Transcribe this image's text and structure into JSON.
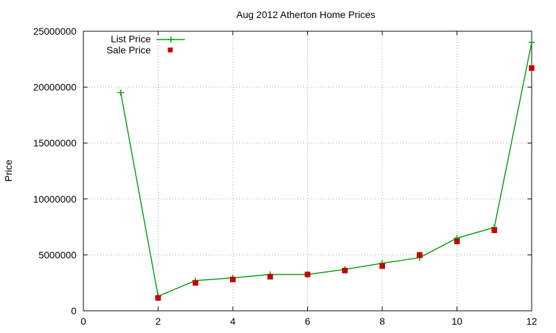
{
  "chart_data": {
    "type": "line",
    "title": "Aug 2012 Atherton Home Prices",
    "xlabel": "",
    "ylabel": "Price",
    "xlim": [
      0,
      12
    ],
    "ylim": [
      0,
      25000000
    ],
    "x_ticks": [
      "0",
      "2",
      "4",
      "6",
      "8",
      "10",
      "12"
    ],
    "y_ticks": [
      "0",
      "5000000",
      "10000000",
      "15000000",
      "20000000",
      "25000000"
    ],
    "grid": true,
    "legend_position": "top-left",
    "series": [
      {
        "name": "List Price",
        "style": "line-with-plus-markers",
        "color": "#0a9e0a",
        "x": [
          1,
          2,
          3,
          4,
          5,
          6,
          7,
          8,
          9,
          10,
          11,
          12
        ],
        "values": [
          19500000,
          1300000,
          2700000,
          2950000,
          3250000,
          3250000,
          3700000,
          4250000,
          4750000,
          6500000,
          7450000,
          24000000
        ]
      },
      {
        "name": "Sale Price",
        "style": "square-markers",
        "color": "#c80000",
        "x": [
          2,
          3,
          4,
          5,
          6,
          7,
          8,
          9,
          10,
          11,
          12
        ],
        "values": [
          1150000,
          2500000,
          2800000,
          3050000,
          3250000,
          3600000,
          4000000,
          5000000,
          6200000,
          7200000,
          21700000
        ]
      }
    ]
  }
}
